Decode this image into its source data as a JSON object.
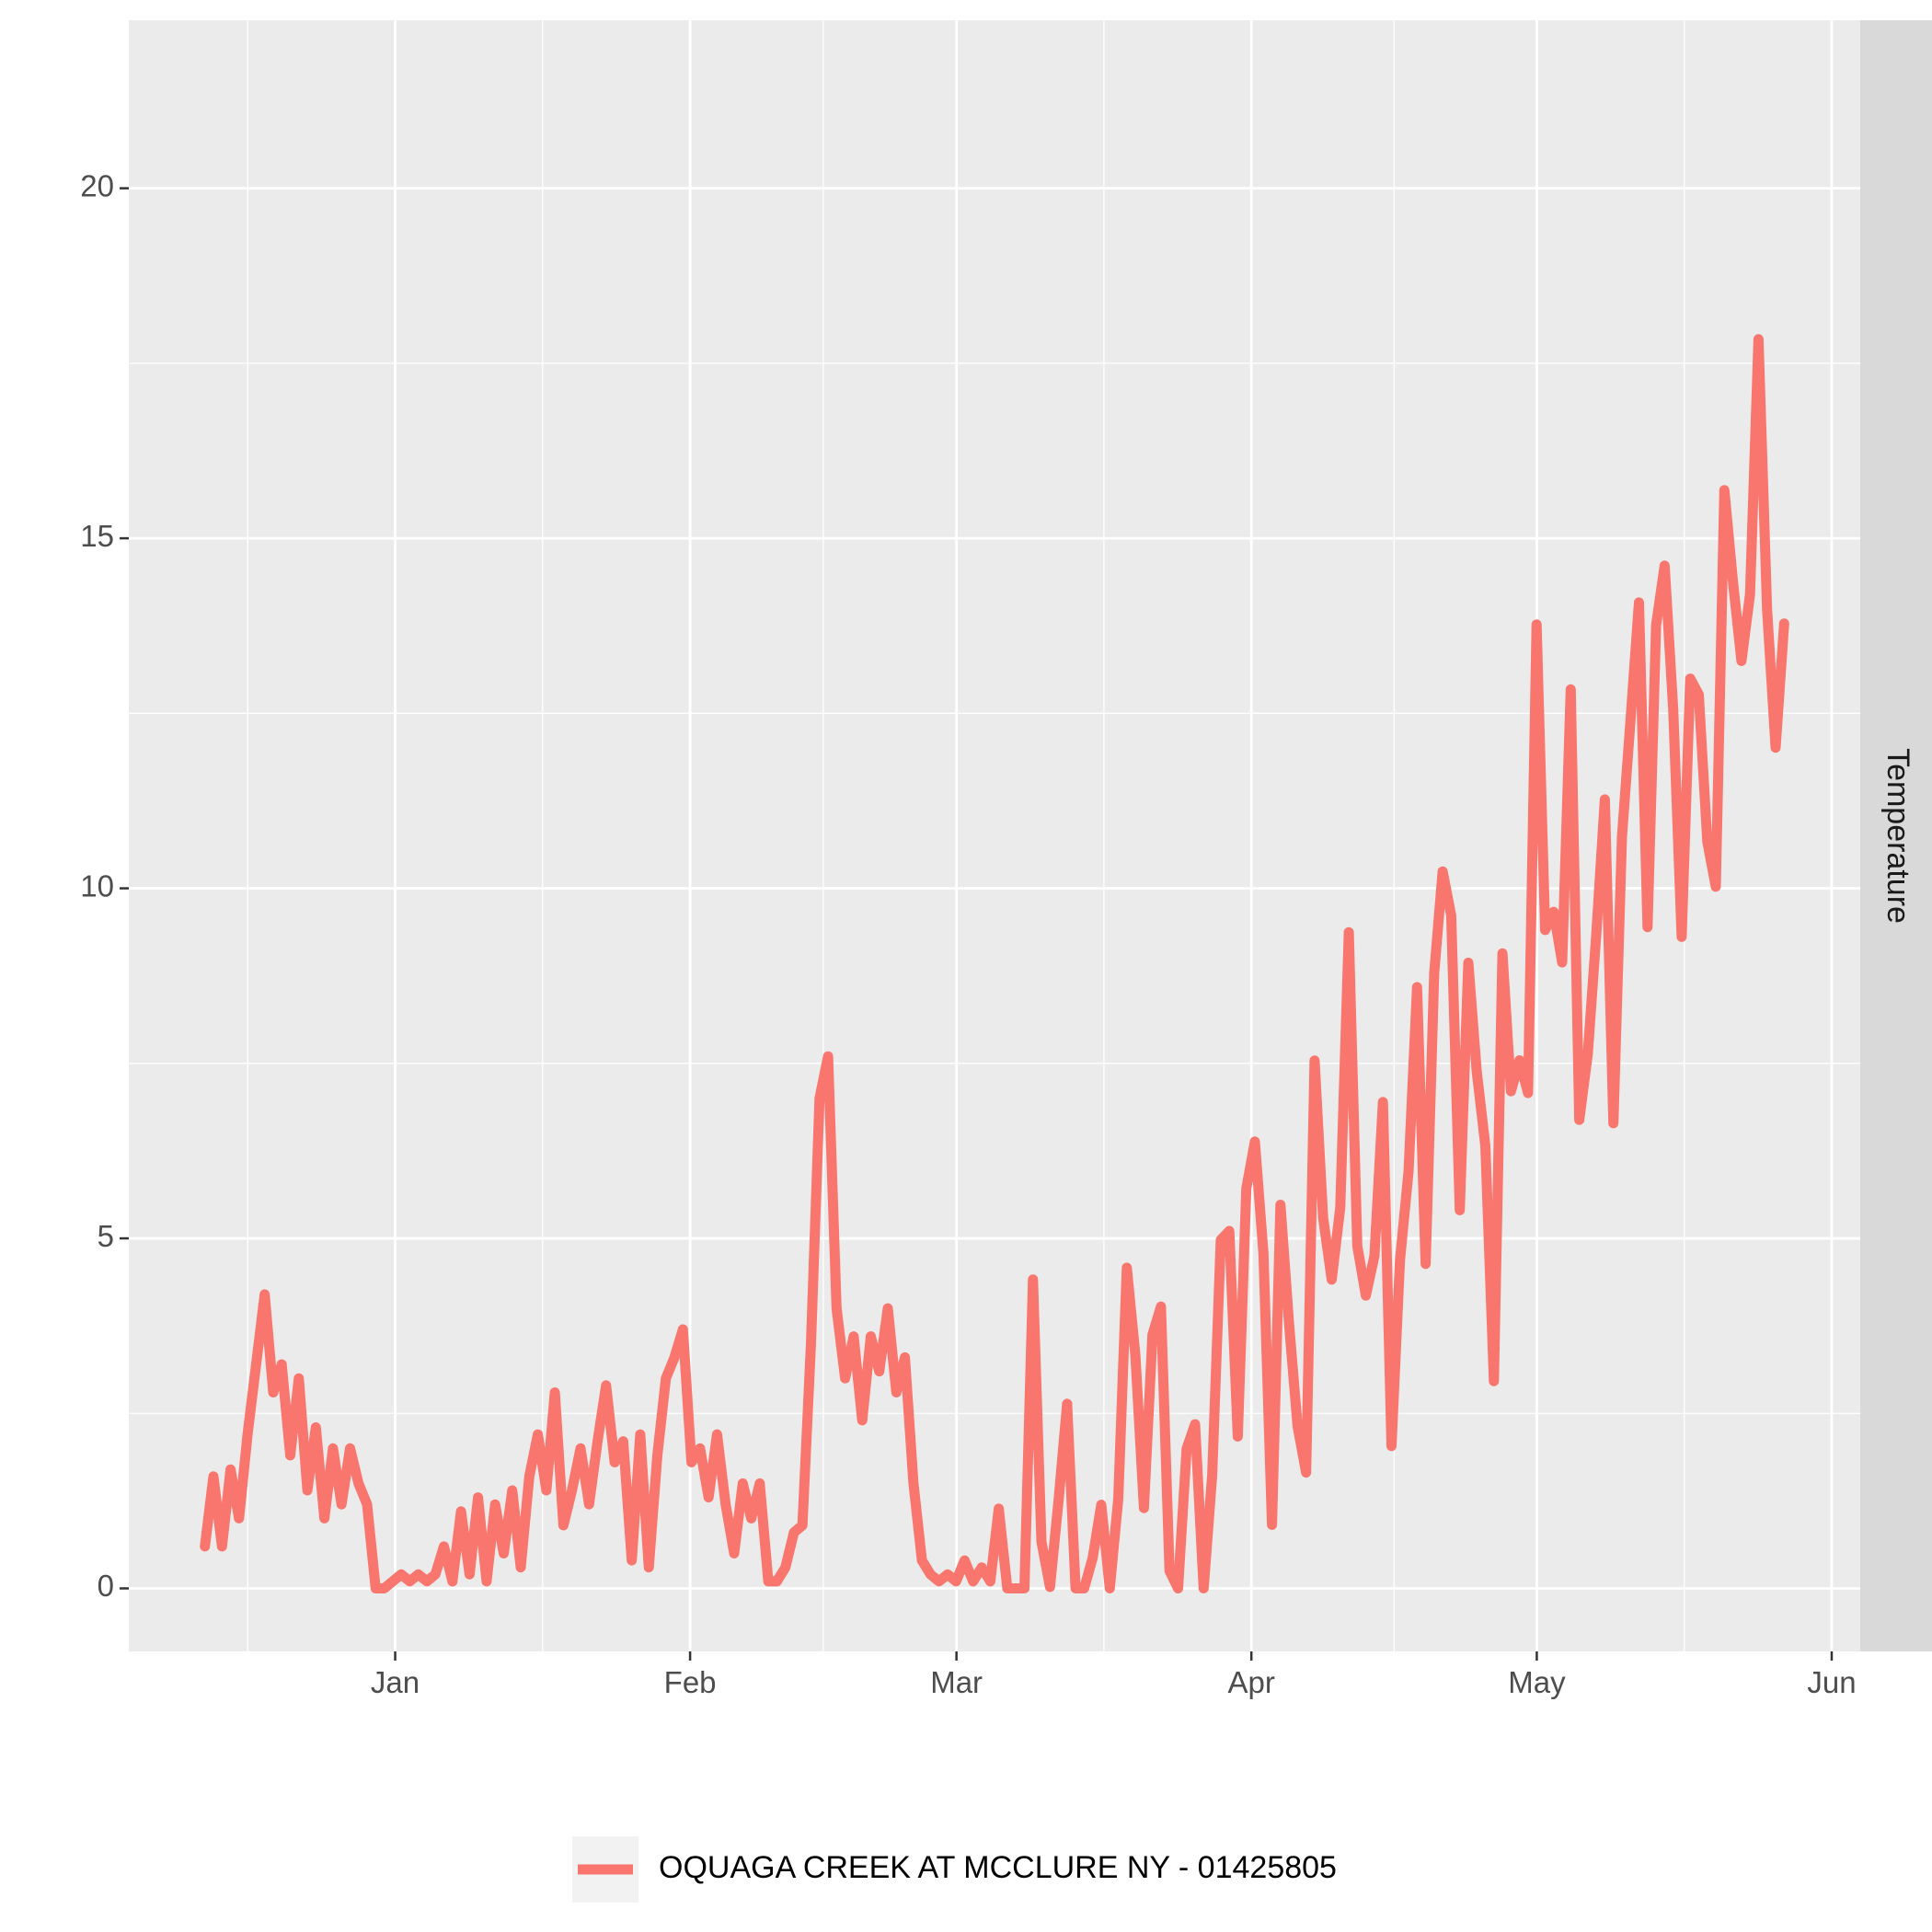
{
  "chart_data": {
    "type": "line",
    "title": "",
    "xlabel": "",
    "ylabel": "",
    "facet_label": "Temperature",
    "x_ticks": [
      "Jan",
      "Feb",
      "Mar",
      "Apr",
      "May",
      "Jun"
    ],
    "x_tick_dates": [
      "2018-01-01",
      "2018-02-01",
      "2018-03-01",
      "2018-04-01",
      "2018-05-01",
      "2018-06-01"
    ],
    "xlim": [
      "2017-12-04",
      "2018-06-04"
    ],
    "y_ticks": [
      0,
      5,
      10,
      15,
      20
    ],
    "ylim": [
      -0.9,
      22.4
    ],
    "grid": true,
    "legend_position": "bottom",
    "colors": {
      "series": "#f8766d",
      "panel": "#ebebeb",
      "strip": "#d9d9d9",
      "grid": "#ffffff"
    },
    "series": [
      {
        "name": "OQUAGA CREEK AT MCCLURE NY - 01425805",
        "points": [
          [
            "2017-12-12",
            0.6
          ],
          [
            "2017-12-12",
            1.6
          ],
          [
            "2017-12-13",
            0.6
          ],
          [
            "2017-12-13",
            1.7
          ],
          [
            "2017-12-14",
            1.0
          ],
          [
            "2017-12-15",
            2.2
          ],
          [
            "2017-12-16",
            3.2
          ],
          [
            "2017-12-17",
            4.2
          ],
          [
            "2017-12-18",
            2.8
          ],
          [
            "2017-12-19",
            3.2
          ],
          [
            "2017-12-19",
            1.9
          ],
          [
            "2017-12-20",
            3.0
          ],
          [
            "2017-12-20",
            1.4
          ],
          [
            "2017-12-21",
            2.3
          ],
          [
            "2017-12-22",
            1.0
          ],
          [
            "2017-12-22",
            2.0
          ],
          [
            "2017-12-23",
            1.2
          ],
          [
            "2017-12-23",
            2.0
          ],
          [
            "2017-12-24",
            1.5
          ],
          [
            "2017-12-25",
            1.2
          ],
          [
            "2017-12-25",
            0.0
          ],
          [
            "2017-12-26",
            0.0
          ],
          [
            "2017-12-27",
            0.1
          ],
          [
            "2017-12-28",
            0.2
          ],
          [
            "2017-12-29",
            0.1
          ],
          [
            "2017-12-30",
            0.2
          ],
          [
            "2017-12-31",
            0.1
          ],
          [
            "2018-01-01",
            0.2
          ],
          [
            "2018-01-02",
            0.6
          ],
          [
            "2018-01-03",
            0.1
          ],
          [
            "2018-01-03",
            1.1
          ],
          [
            "2018-01-04",
            0.2
          ],
          [
            "2018-01-05",
            1.3
          ],
          [
            "2018-01-06",
            0.1
          ],
          [
            "2018-01-06",
            1.2
          ],
          [
            "2018-01-07",
            0.5
          ],
          [
            "2018-01-08",
            1.4
          ],
          [
            "2018-01-08",
            0.3
          ],
          [
            "2018-01-09",
            1.6
          ],
          [
            "2018-01-10",
            2.2
          ],
          [
            "2018-01-10",
            1.4
          ],
          [
            "2018-01-11",
            2.8
          ],
          [
            "2018-01-12",
            0.9
          ],
          [
            "2018-01-13",
            1.4
          ],
          [
            "2018-01-14",
            2.0
          ],
          [
            "2018-01-14",
            1.2
          ],
          [
            "2018-01-15",
            2.1
          ],
          [
            "2018-01-16",
            2.9
          ],
          [
            "2018-01-17",
            1.8
          ],
          [
            "2018-01-18",
            2.1
          ],
          [
            "2018-01-19",
            0.4
          ],
          [
            "2018-01-19",
            2.2
          ],
          [
            "2018-01-20",
            0.3
          ],
          [
            "2018-01-20",
            1.9
          ],
          [
            "2018-01-21",
            3.0
          ],
          [
            "2018-01-22",
            3.3
          ],
          [
            "2018-01-23",
            3.7
          ],
          [
            "2018-01-24",
            1.8
          ],
          [
            "2018-01-25",
            2.0
          ],
          [
            "2018-01-26",
            1.3
          ],
          [
            "2018-01-27",
            2.2
          ],
          [
            "2018-01-27",
            1.2
          ],
          [
            "2018-01-28",
            0.5
          ],
          [
            "2018-01-29",
            1.5
          ],
          [
            "2018-01-30",
            1.0
          ],
          [
            "2018-01-31",
            1.5
          ],
          [
            "2018-02-01",
            0.1
          ],
          [
            "2018-02-02",
            0.1
          ],
          [
            "2018-02-03",
            0.3
          ],
          [
            "2018-02-04",
            0.8
          ],
          [
            "2018-02-05",
            0.9
          ],
          [
            "2018-02-06",
            3.5
          ],
          [
            "2018-02-07",
            7.0
          ],
          [
            "2018-02-08",
            7.6
          ],
          [
            "2018-02-09",
            4.0
          ],
          [
            "2018-02-10",
            3.0
          ],
          [
            "2018-02-11",
            3.6
          ],
          [
            "2018-02-11",
            2.4
          ],
          [
            "2018-02-12",
            3.6
          ],
          [
            "2018-02-13",
            3.1
          ],
          [
            "2018-02-14",
            4.0
          ],
          [
            "2018-02-15",
            2.8
          ],
          [
            "2018-02-16",
            3.3
          ],
          [
            "2018-02-17",
            1.5
          ],
          [
            "2018-02-18",
            0.4
          ],
          [
            "2018-02-19",
            0.2
          ],
          [
            "2018-02-20",
            0.1
          ],
          [
            "2018-02-21",
            0.2
          ],
          [
            "2018-02-22",
            0.1
          ],
          [
            "2018-02-23",
            0.4
          ],
          [
            "2018-02-24",
            0.1
          ],
          [
            "2018-02-25",
            0.3
          ],
          [
            "2018-02-26",
            0.1
          ],
          [
            "2018-02-27",
            0.2
          ],
          [
            "2018-02-28",
            0.1
          ],
          [
            "2018-03-01",
            0.3
          ],
          [
            "2018-03-02",
            0.2
          ],
          [
            "2018-03-03",
            0.4
          ],
          [
            "2018-03-04",
            0.2
          ],
          [
            "2018-03-05",
            0.5
          ],
          [
            "2018-03-06",
            1.0
          ],
          [
            "2018-03-07",
            0.3
          ],
          [
            "2018-03-08",
            0.5
          ],
          [
            "2018-03-09",
            0.1
          ],
          [
            "2018-03-10",
            0.8
          ],
          [
            "2018-03-11",
            0.7
          ],
          [
            "2018-03-12",
            0.6
          ],
          [
            "2018-03-13",
            1.5
          ],
          [
            "2018-03-14",
            1.9
          ],
          [
            "2018-03-15",
            1.2
          ],
          [
            "2018-03-16",
            2.0
          ],
          [
            "2018-03-17",
            1.5
          ],
          [
            "2018-03-18",
            0.3
          ],
          [
            "2018-03-19",
            0.1
          ],
          [
            "2018-03-20",
            0.6
          ],
          [
            "2018-03-21",
            1.0
          ],
          [
            "2018-03-22",
            1.1
          ],
          [
            "2018-03-23",
            1.2
          ],
          [
            "2018-03-24",
            1.7
          ],
          [
            "2018-03-25",
            1.3
          ],
          [
            "2018-03-26",
            2.0
          ],
          [
            "2018-03-27",
            1.6
          ],
          [
            "2018-03-28",
            2.3
          ],
          [
            "2018-03-29",
            1.8
          ],
          [
            "2018-03-30",
            3.9
          ],
          [
            "2018-03-31",
            1.9
          ],
          [
            "2018-04-01",
            3.9
          ],
          [
            "2018-04-02",
            2.2
          ]
        ],
        "note": "seed"
      }
    ]
  },
  "legend": {
    "label": "OQUAGA CREEK AT MCCLURE NY - 01425805"
  }
}
